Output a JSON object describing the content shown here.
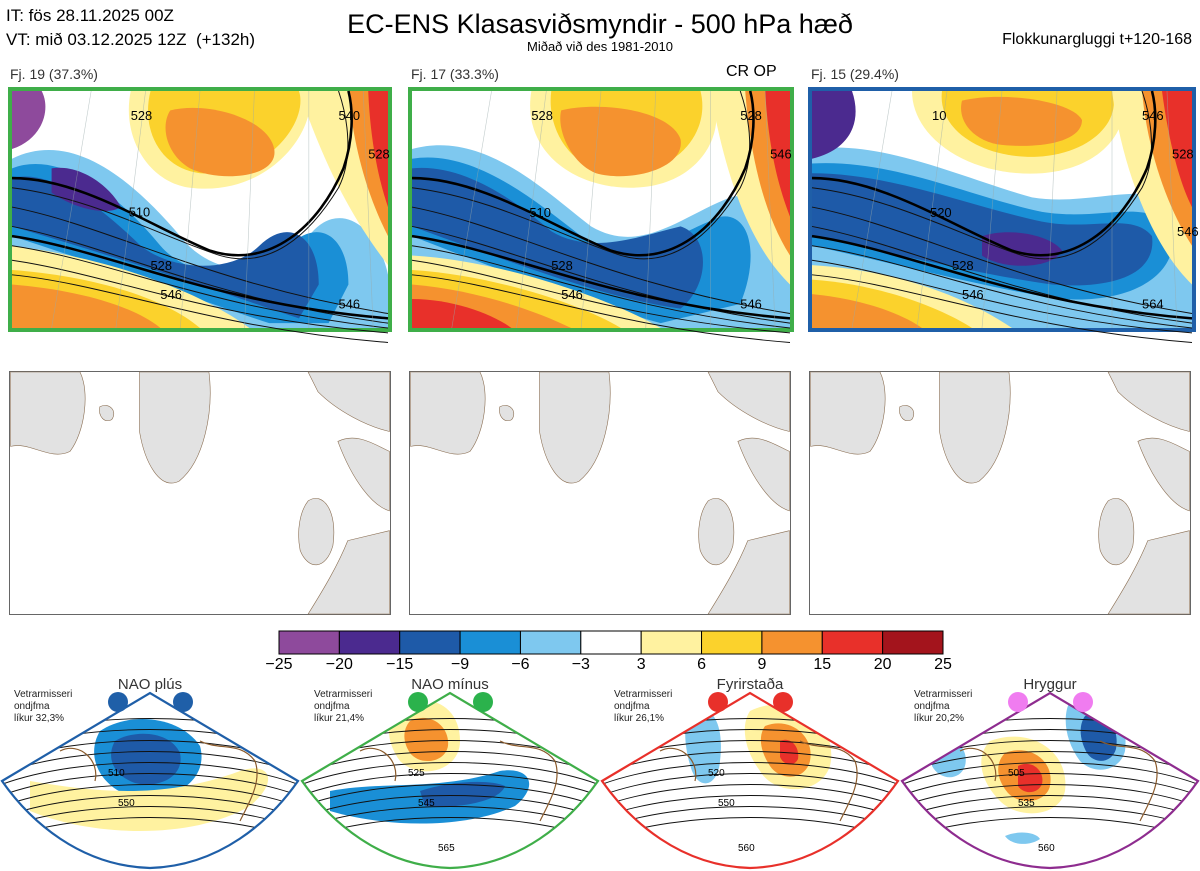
{
  "header": {
    "it": "IT: fös 28.11.2025 00Z",
    "vt": "VT: mið 03.12.2025 12Z  (+132h)",
    "title": "EC-ENS Klasasviðsmyndir - 500 hPa hæð",
    "subtitle": "Miðað við des 1981-2010",
    "window": "Flokkunargluggi t+120-168"
  },
  "clusters": [
    {
      "label": "Fj. 19 (37.3%)",
      "tag": "",
      "frame_color": "#3fae49",
      "contours": [
        "528",
        "510",
        "528",
        "546",
        "546",
        "540",
        "528"
      ]
    },
    {
      "label": "Fj. 17 (33.3%)",
      "tag": "CR OP",
      "frame_color": "#3fae49",
      "contours": [
        "528",
        "510",
        "528",
        "546",
        "546",
        "528",
        "546"
      ]
    },
    {
      "label": "Fj. 15 (29.4%)",
      "tag": "",
      "frame_color": "#1f5fa8",
      "contours": [
        "10",
        "520",
        "528",
        "546",
        "564",
        "546",
        "528",
        "546"
      ]
    }
  ],
  "colorbar": {
    "ticks": [
      "−25",
      "−20",
      "−15",
      "−9",
      "−6",
      "−3",
      "3",
      "6",
      "9",
      "15",
      "20",
      "25"
    ],
    "colors": [
      "#8e4a9c",
      "#4b2a8f",
      "#1e5aa8",
      "#1a8fd6",
      "#7ec8ef",
      "#ffffff",
      "#fff2a0",
      "#fbd22c",
      "#f5922f",
      "#e8302a",
      "#a3141c"
    ]
  },
  "regimes": [
    {
      "name": "NAO plús",
      "note": "Vetrarmisseri\nondjfma\nlíkur 32,3%",
      "color": "#1f5fa8",
      "dot_color": "#1f5fa8",
      "contours": [
        "510",
        "550"
      ]
    },
    {
      "name": "NAO mínus",
      "note": "Vetrarmisseri\nondjfma\nlíkur 21,4%",
      "color": "#3fae49",
      "dot_color": "#2bb24c",
      "contours": [
        "525",
        "545",
        "565"
      ]
    },
    {
      "name": "Fyrirstaða",
      "note": "Vetrarmisseri\nondjfma\nlíkur 26,1%",
      "color": "#e8302a",
      "dot_color": "#e8302a",
      "contours": [
        "520",
        "550",
        "560"
      ]
    },
    {
      "name": "Hryggur",
      "note": "Vetrarmisseri\nondjfma\nlíkur 20,2%",
      "color": "#8e2c8f",
      "dot_color": "#f07cf0",
      "contours": [
        "505",
        "535",
        "560"
      ]
    }
  ]
}
